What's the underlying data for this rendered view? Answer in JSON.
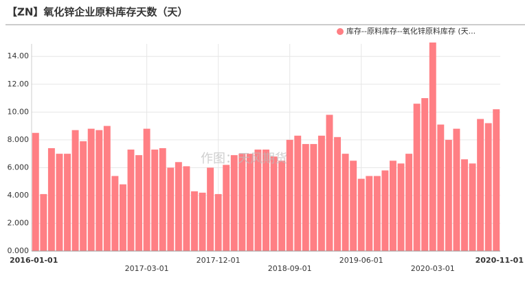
{
  "chart_data": {
    "type": "bar",
    "title": "【ZN】氧化锌企业原料库存天数（天）",
    "watermark": "作图：天风期货",
    "categories": [
      "2016-01-01",
      null,
      null,
      null,
      null,
      null,
      null,
      null,
      null,
      null,
      null,
      null,
      null,
      null,
      "2017-03-01",
      null,
      null,
      null,
      null,
      null,
      null,
      null,
      null,
      "2017-12-01",
      null,
      null,
      null,
      null,
      null,
      null,
      null,
      null,
      "2018-09-01",
      null,
      null,
      null,
      null,
      null,
      null,
      null,
      null,
      "2019-06-01",
      null,
      null,
      null,
      null,
      null,
      null,
      null,
      null,
      "2020-03-01",
      null,
      null,
      null,
      null,
      null,
      null,
      null,
      "2020-11-01"
    ],
    "series": [
      {
        "name": "库存--原料库存--氧化锌原料库存 (天...",
        "color": "#ff7f84",
        "values": [
          8.5,
          4.1,
          7.4,
          7.0,
          7.0,
          8.7,
          7.9,
          8.8,
          8.7,
          9.0,
          5.4,
          4.8,
          7.3,
          6.9,
          8.8,
          7.3,
          7.4,
          6.0,
          6.4,
          6.1,
          4.3,
          4.2,
          6.0,
          4.1,
          6.2,
          6.9,
          7.0,
          7.0,
          7.3,
          7.3,
          6.8,
          6.5,
          8.0,
          8.3,
          7.7,
          7.7,
          8.3,
          9.8,
          8.2,
          7.0,
          6.5,
          5.2,
          5.4,
          5.4,
          5.8,
          6.5,
          6.3,
          7.0,
          10.6,
          11.0,
          15.0,
          9.1,
          8.0,
          8.8,
          6.6,
          6.3,
          9.5,
          9.2,
          10.2
        ]
      }
    ],
    "ylim": [
      0,
      14.9
    ],
    "yticks": [
      {
        "value": 0,
        "label": "0.000"
      },
      {
        "value": 2,
        "label": "2.000"
      },
      {
        "value": 4,
        "label": "4.000"
      },
      {
        "value": 6,
        "label": "6.000"
      },
      {
        "value": 8,
        "label": "8.000"
      },
      {
        "value": 10,
        "label": "10.00"
      },
      {
        "value": 12,
        "label": "12.00"
      },
      {
        "value": 14,
        "label": "14.00"
      }
    ],
    "grid": true
  }
}
